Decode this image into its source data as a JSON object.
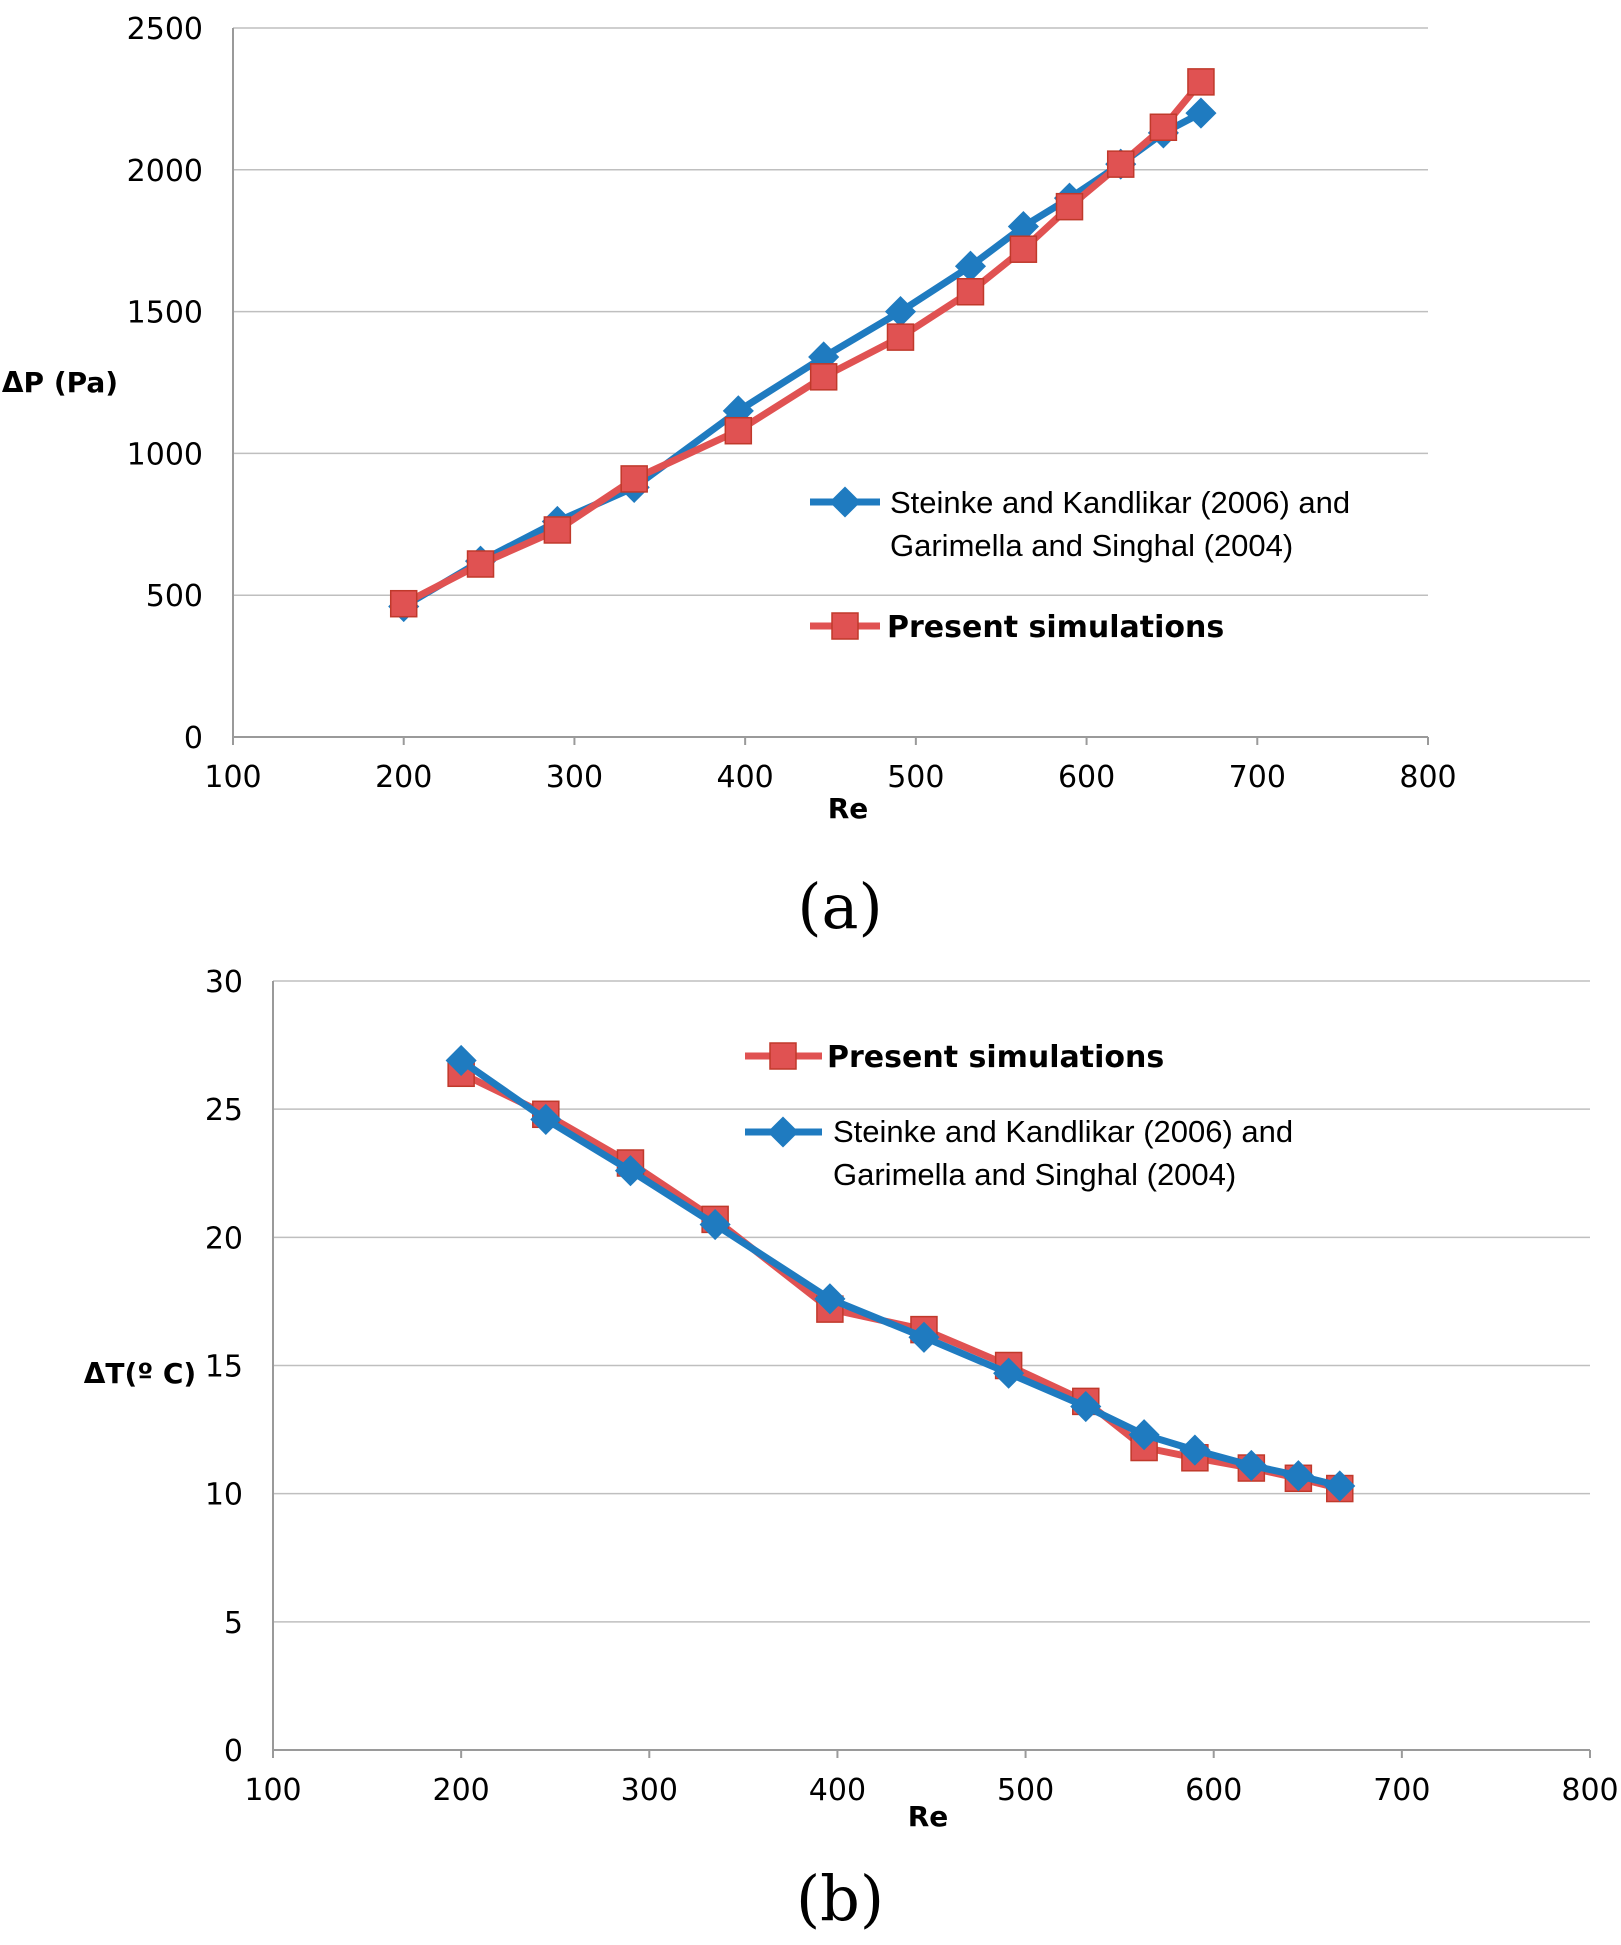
{
  "colors": {
    "blue": "#1f7bc0",
    "red": "#e05252",
    "red_edge": "#c0392b"
  },
  "chart_data": [
    {
      "type": "line",
      "panel_label": "(a)",
      "xlabel": "Re",
      "ylabel": "ΔP (Pa)",
      "xlim": [
        100,
        800
      ],
      "ylim": [
        0,
        2500
      ],
      "xticks": [
        "100",
        "200",
        "300",
        "400",
        "500",
        "600",
        "700",
        "800"
      ],
      "yticks": [
        "0",
        "500",
        "1000",
        "1500",
        "2000",
        "2500"
      ],
      "grid": true,
      "legend_position": "center-right",
      "series": [
        {
          "name": "Steinke and Kandlikar (2006) and Garimella and Singhal (2004)",
          "name_lines": [
            "Steinke and Kandlikar (2006) and",
            "Garimella and Singhal (2004)"
          ],
          "marker": "diamond",
          "color_key": "blue",
          "x": [
            200,
            245,
            290,
            335,
            396,
            446,
            491,
            532,
            563,
            590,
            620,
            645,
            667
          ],
          "y": [
            460,
            620,
            760,
            880,
            1150,
            1340,
            1500,
            1660,
            1800,
            1900,
            2020,
            2130,
            2200
          ]
        },
        {
          "name": "Present simulations",
          "name_lines": [
            "Present simulations"
          ],
          "marker": "square",
          "color_key": "red",
          "x": [
            200,
            245,
            290,
            335,
            396,
            446,
            491,
            532,
            563,
            590,
            620,
            645,
            667
          ],
          "y": [
            470,
            610,
            730,
            910,
            1080,
            1270,
            1410,
            1570,
            1720,
            1870,
            2020,
            2150,
            2310
          ]
        }
      ]
    },
    {
      "type": "line",
      "panel_label": "(b)",
      "xlabel": "Re",
      "ylabel": "ΔT(º C)",
      "xlim": [
        100,
        800
      ],
      "ylim": [
        0,
        30
      ],
      "xticks": [
        "100",
        "200",
        "300",
        "400",
        "500",
        "600",
        "700",
        "800"
      ],
      "yticks": [
        "0",
        "5",
        "10",
        "15",
        "20",
        "25",
        "30"
      ],
      "grid": true,
      "legend_position": "top-center",
      "series": [
        {
          "name": "Present simulations",
          "name_lines": [
            "Present simulations"
          ],
          "marker": "square",
          "color_key": "red",
          "x": [
            200,
            245,
            290,
            335,
            396,
            446,
            491,
            532,
            563,
            590,
            620,
            645,
            667
          ],
          "y": [
            26.4,
            24.8,
            22.9,
            20.7,
            17.2,
            16.4,
            15.0,
            13.6,
            11.8,
            11.4,
            11.0,
            10.6,
            10.2
          ]
        },
        {
          "name": "Steinke and Kandlikar (2006) and Garimella and Singhal (2004)",
          "name_lines": [
            "Steinke and Kandlikar (2006) and",
            "Garimella and Singhal (2004)"
          ],
          "marker": "diamond",
          "color_key": "blue",
          "x": [
            200,
            245,
            290,
            335,
            396,
            446,
            491,
            532,
            563,
            590,
            620,
            645,
            667
          ],
          "y": [
            26.9,
            24.6,
            22.6,
            20.5,
            17.6,
            16.1,
            14.7,
            13.4,
            12.3,
            11.7,
            11.1,
            10.7,
            10.3
          ]
        }
      ]
    }
  ]
}
